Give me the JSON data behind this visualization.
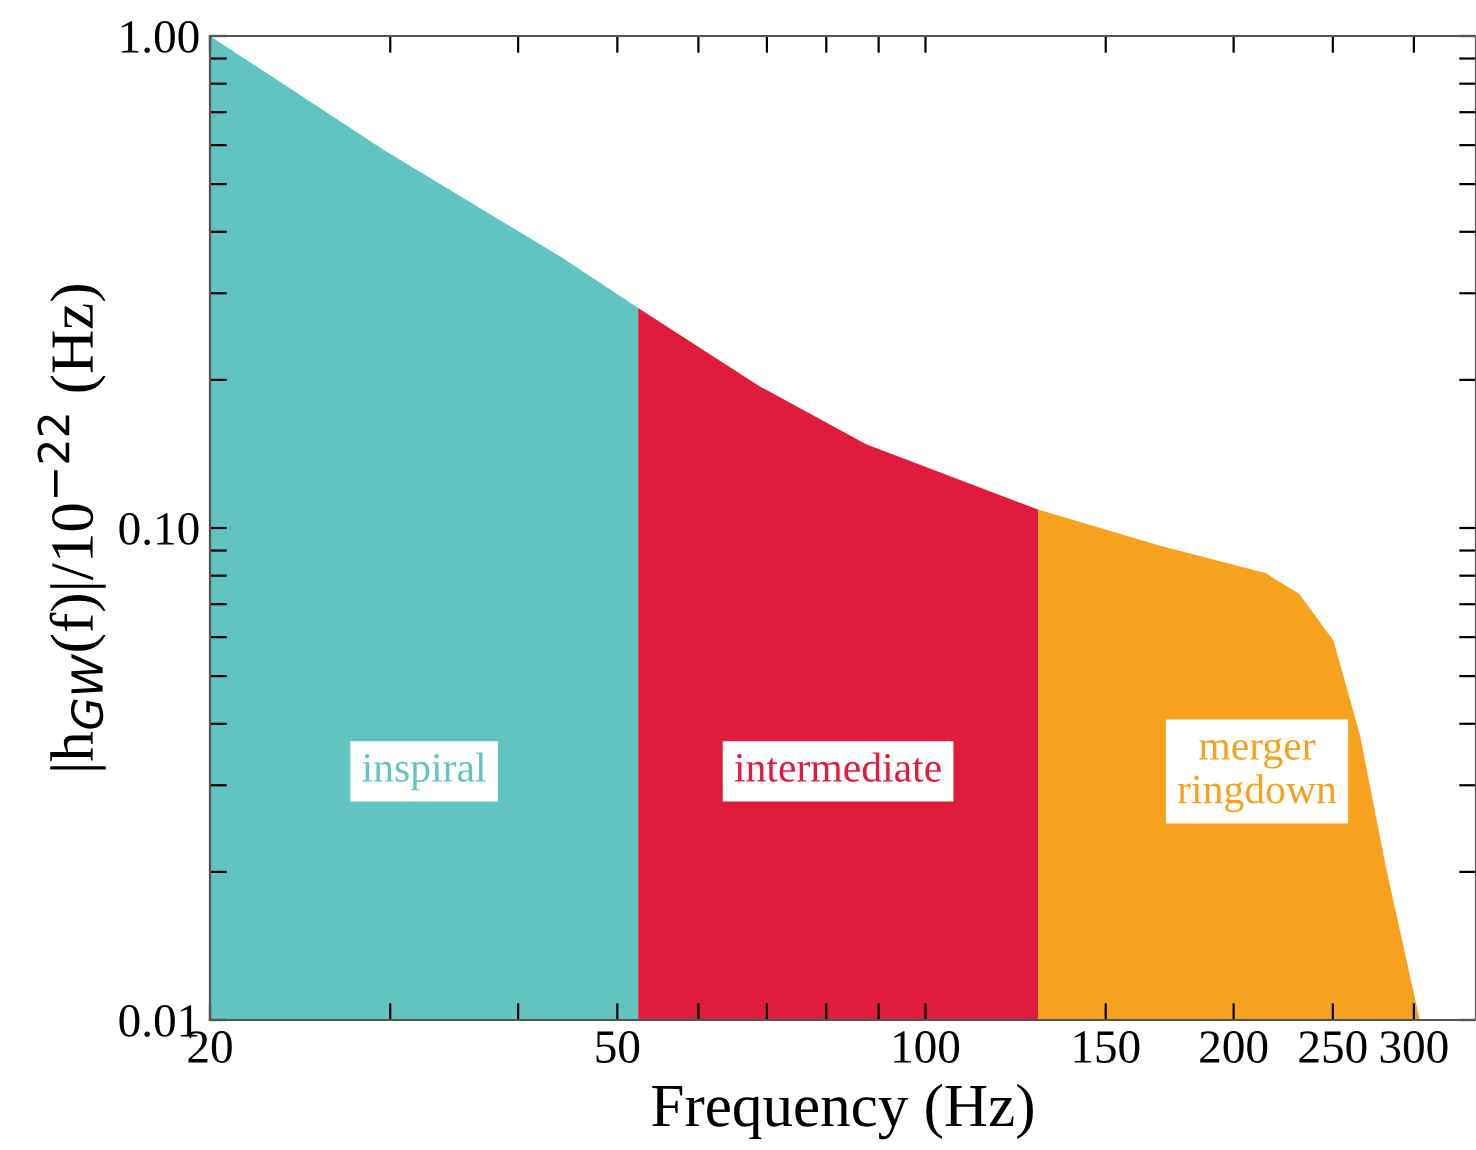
{
  "chart_data": {
    "type": "area",
    "xlabel": "Frequency (Hz)",
    "ylabel": "|h$_{GW}$(f)|/10$^{−22}$ (Hz)",
    "log": "xy",
    "xlim": [
      20,
      345
    ],
    "ylim": [
      0.01,
      1.0
    ],
    "xticks": [
      20,
      {
        "value": 30,
        "label": null
      },
      {
        "value": 40,
        "label": null
      },
      50,
      {
        "value": 60,
        "label": null
      },
      {
        "value": 70,
        "label": null
      },
      {
        "value": 80,
        "label": null
      },
      {
        "value": 90,
        "label": null
      },
      100,
      150,
      200,
      250,
      300
    ],
    "yticks": [
      {
        "value": 0.01,
        "label": "0.01"
      },
      {
        "value": 0.02,
        "label": null
      },
      {
        "value": 0.03,
        "label": null
      },
      {
        "value": 0.04,
        "label": null
      },
      {
        "value": 0.05,
        "label": null
      },
      {
        "value": 0.06,
        "label": null
      },
      {
        "value": 0.07,
        "label": null
      },
      {
        "value": 0.08,
        "label": null
      },
      {
        "value": 0.09,
        "label": null
      },
      {
        "value": 0.1,
        "label": "0.10"
      },
      {
        "value": 0.2,
        "label": null
      },
      {
        "value": 0.3,
        "label": null
      },
      {
        "value": 0.4,
        "label": null
      },
      {
        "value": 0.5,
        "label": null
      },
      {
        "value": 0.6,
        "label": null
      },
      {
        "value": 0.7,
        "label": null
      },
      {
        "value": 0.8,
        "label": null
      },
      {
        "value": 0.9,
        "label": null
      },
      {
        "value": 1.0,
        "label": "1.00"
      }
    ],
    "grid": false,
    "legend": false,
    "series": [
      {
        "name": "inspiral",
        "color": "#62c4c1",
        "x": [
          20,
          29.6,
          43.9,
          52.4
        ],
        "values": [
          1.0,
          0.586,
          0.357,
          0.28
        ]
      },
      {
        "name": "intermediate",
        "color": "#df1c3d",
        "x": [
          52.4,
          68.9,
          87.5,
          128.8
        ],
        "values": [
          0.28,
          0.194,
          0.148,
          0.109
        ]
      },
      {
        "name": "merger\nringdown",
        "color": "#f7a21e",
        "x": [
          128.8,
          169.5,
          214.8,
          231.7,
          250.4,
          265.7,
          281.5,
          304,
          345
        ],
        "values": [
          0.109,
          0.092,
          0.081,
          0.0735,
          0.059,
          0.038,
          0.0206,
          0.01,
          0.01
        ]
      }
    ]
  }
}
